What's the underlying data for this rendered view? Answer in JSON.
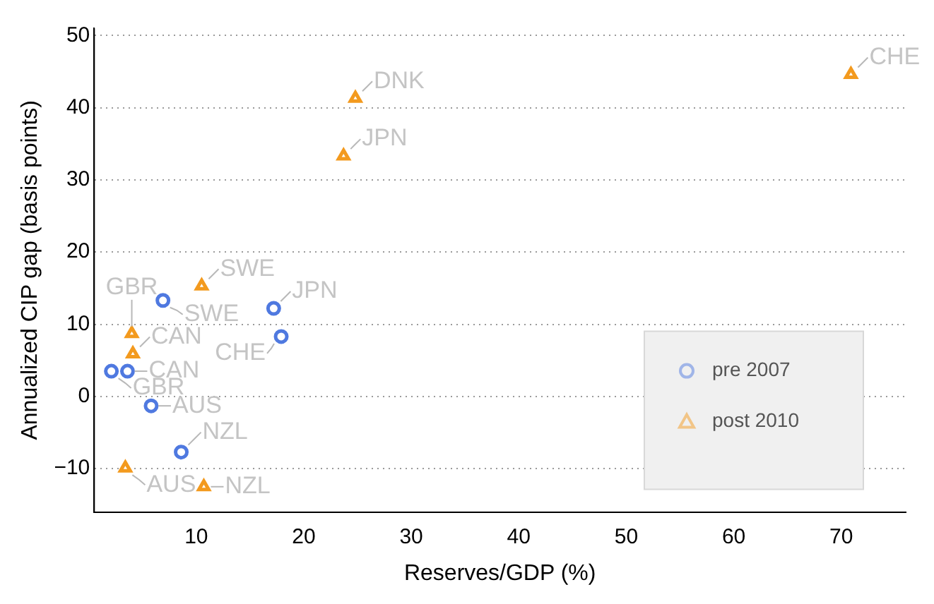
{
  "chart_data": {
    "type": "scatter",
    "xlabel": "Reserves/GDP (%)",
    "ylabel": "Annualized CIP gap (basis points)",
    "xlim": [
      0.5,
      76
    ],
    "xticks": [
      10,
      20,
      30,
      40,
      50,
      60,
      70
    ],
    "ylim": [
      -16,
      51
    ],
    "yticks": [
      -10,
      0,
      10,
      20,
      30,
      40,
      50
    ],
    "grid": "y",
    "legend": "bottom right",
    "series": [
      {
        "name": "pre 2007",
        "color": "#4f79e0",
        "marker": "circle",
        "x": [
          2.1,
          3.6,
          5.8,
          8.6,
          6.9,
          17.2,
          17.9
        ],
        "values": [
          3.5,
          3.5,
          -1.3,
          -7.7,
          13.3,
          12.2,
          8.3
        ]
      },
      {
        "name": "post 2010",
        "color": "#f39a1e",
        "marker": "triangle",
        "x": [
          10.5,
          4.0,
          4.1,
          3.4,
          10.7,
          24.8,
          23.7,
          70.9
        ],
        "values": [
          15.3,
          8.7,
          5.9,
          -9.9,
          -12.5,
          41.3,
          33.3,
          44.6
        ]
      }
    ],
    "annotations": [
      {
        "text": "GBR",
        "x": 2.1,
        "y": 3.5
      },
      {
        "text": "CAN",
        "x": 3.6,
        "y": 3.5
      },
      {
        "text": "AUS",
        "x": 5.8,
        "y": -1.3
      },
      {
        "text": "NZL",
        "x": 8.6,
        "y": -7.7
      },
      {
        "text": "SWE",
        "x": 6.9,
        "y": 13.3
      },
      {
        "text": "JPN",
        "x": 17.2,
        "y": 12.2
      },
      {
        "text": "CHE",
        "x": 17.9,
        "y": 8.3
      },
      {
        "text": "SWE",
        "x": 10.5,
        "y": 15.3
      },
      {
        "text": "GBR",
        "x": 4.0,
        "y": 8.7
      },
      {
        "text": "CAN",
        "x": 4.1,
        "y": 5.9
      },
      {
        "text": "AUS",
        "x": 3.4,
        "y": -9.9
      },
      {
        "text": "NZL",
        "x": 10.7,
        "y": -12.5
      },
      {
        "text": "DNK",
        "x": 24.8,
        "y": 41.3
      },
      {
        "text": "JPN",
        "x": 23.7,
        "y": 33.3
      },
      {
        "text": "CHE",
        "x": 70.9,
        "y": 44.6
      }
    ]
  }
}
